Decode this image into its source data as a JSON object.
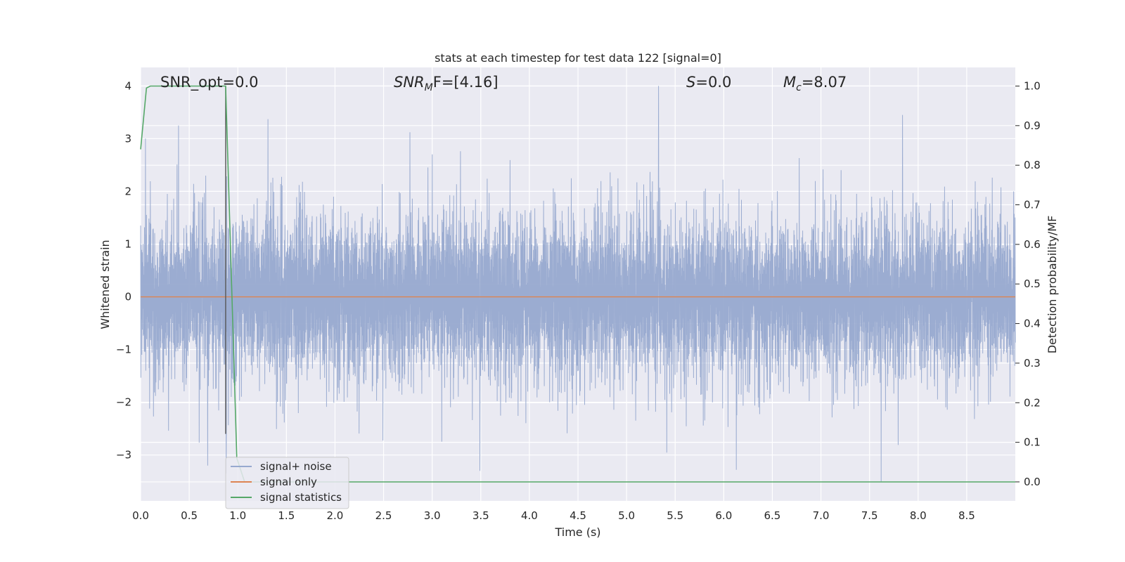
{
  "chart_data": {
    "type": "line",
    "title": "stats at each timestep for test data 122 [signal=0]",
    "xlabel": "Time (s)",
    "ylabel": "Whitened strain",
    "ylabel_right": "Detection probability/MF",
    "xlim": [
      0,
      9.0
    ],
    "ylim": [
      -3.87,
      4.35
    ],
    "ylim_right": [
      -0.048,
      1.047
    ],
    "grid": true,
    "legend_position": "lower-left",
    "x_ticks": [
      "0.0",
      "0.5",
      "1.0",
      "1.5",
      "2.0",
      "2.5",
      "3.0",
      "3.5",
      "4.0",
      "4.5",
      "5.0",
      "5.5",
      "6.0",
      "6.5",
      "7.0",
      "7.5",
      "8.0",
      "8.5"
    ],
    "y_ticks": [
      "4",
      "3",
      "2",
      "1",
      "0",
      "−1",
      "−2",
      "−3"
    ],
    "y_ticks_right": [
      "1.0",
      "0.9",
      "0.8",
      "0.7",
      "0.6",
      "0.5",
      "0.4",
      "0.3",
      "0.2",
      "0.1",
      "0.0"
    ],
    "annotations": {
      "snr_opt": "SNR_opt=0.0",
      "snr_mf_main": "SNR",
      "snr_mf_sub": "M",
      "snr_mf_rest": "F=[4.16]",
      "s_var": "S",
      "s_rest": "=0.0",
      "mc_var": "M",
      "mc_sub": "c",
      "mc_rest": "=8.07"
    },
    "series": [
      {
        "name": "signal+ noise",
        "color": "#97a9cf",
        "description_values": {
          "x_range": [
            0,
            9.0
          ],
          "noise_band_upper_typical": 2.3,
          "noise_band_lower_typical": -2.3,
          "spikes": [
            {
              "x": 0.05,
              "y": 3.0
            },
            {
              "x": 0.39,
              "y": 3.25
            },
            {
              "x": 1.31,
              "y": 3.37
            },
            {
              "x": 2.77,
              "y": 3.12
            },
            {
              "x": 5.33,
              "y": 4.0
            },
            {
              "x": 7.84,
              "y": 3.45
            },
            {
              "x": 0.69,
              "y": -3.2
            },
            {
              "x": 0.88,
              "y": -3.35
            },
            {
              "x": 3.49,
              "y": -3.3
            },
            {
              "x": 6.13,
              "y": -3.28
            },
            {
              "x": 7.62,
              "y": -3.5
            }
          ]
        }
      },
      {
        "name": "signal only",
        "color": "#dd8452",
        "x": [
          0,
          9.0
        ],
        "y": [
          0,
          0
        ]
      },
      {
        "name": "signal statistics",
        "color": "#55a868",
        "axis": "right",
        "x": [
          0,
          0.06,
          0.1,
          0.2,
          0.4,
          0.6,
          0.8,
          0.875,
          0.99,
          1.07,
          9.0
        ],
        "y": [
          0.84,
          0.995,
          1.0,
          1.0,
          1.0,
          1.0,
          1.0,
          1.0,
          0.06,
          0.0,
          0.0
        ]
      }
    ],
    "vertical_line": {
      "x": 0.875,
      "color": "#555555"
    }
  }
}
